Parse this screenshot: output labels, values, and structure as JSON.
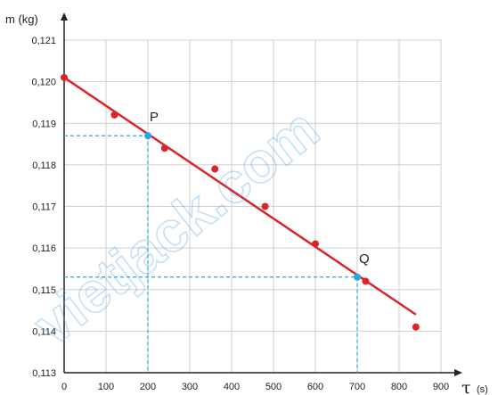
{
  "chart_data": {
    "type": "scatter",
    "xlabel_unit": "(s)",
    "xlabel_symbol": "τ",
    "ylabel": "m (kg)",
    "xlim": [
      0,
      900
    ],
    "ylim": [
      0.113,
      0.121
    ],
    "x_ticks": [
      0,
      100,
      200,
      300,
      400,
      500,
      600,
      700,
      800,
      900
    ],
    "y_ticks": [
      0.113,
      0.114,
      0.115,
      0.116,
      0.117,
      0.118,
      0.119,
      0.12,
      0.121
    ],
    "x_tick_labels": [
      "0",
      "100",
      "200",
      "300",
      "400",
      "500",
      "600",
      "700",
      "800",
      "900"
    ],
    "y_tick_labels": [
      "0,113",
      "0,114",
      "0,115",
      "0,116",
      "0,117",
      "0,118",
      "0,119",
      "0,120",
      "0,121"
    ],
    "grid": true,
    "points": [
      {
        "x": 0,
        "y": 0.1201
      },
      {
        "x": 120,
        "y": 0.1192
      },
      {
        "x": 240,
        "y": 0.1184
      },
      {
        "x": 360,
        "y": 0.1179
      },
      {
        "x": 480,
        "y": 0.117
      },
      {
        "x": 600,
        "y": 0.1161
      },
      {
        "x": 720,
        "y": 0.1152
      },
      {
        "x": 840,
        "y": 0.1141
      }
    ],
    "fit_line": {
      "x": [
        0,
        840
      ],
      "y": [
        0.1201,
        0.1144
      ]
    },
    "marked_points": [
      {
        "label": "P",
        "x": 200,
        "y": 0.1187
      },
      {
        "label": "Q",
        "x": 700,
        "y": 0.1153
      }
    ],
    "colors": {
      "points": "#d9252a",
      "fit_line": "#d9252a",
      "marked": "#2aa8dc",
      "grid": "#cfcfcf",
      "axis": "#222222"
    }
  },
  "watermark": "vietjack.com"
}
